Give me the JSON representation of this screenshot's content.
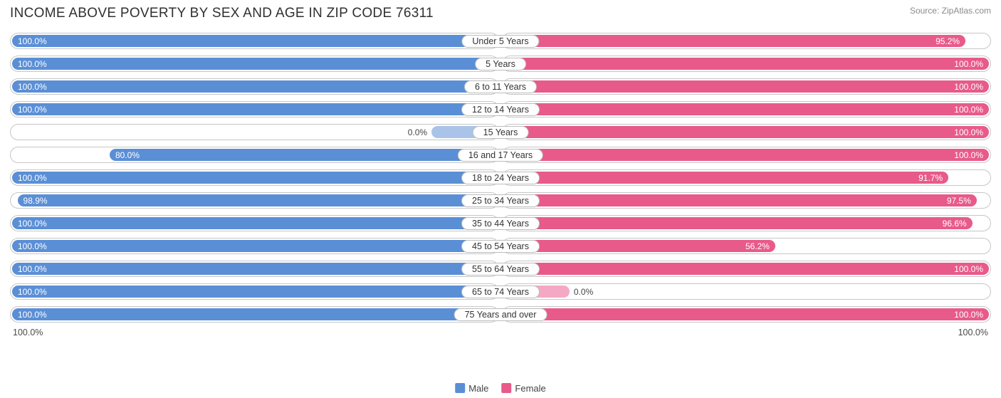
{
  "title": "INCOME ABOVE POVERTY BY SEX AND AGE IN ZIP CODE 76311",
  "source": "Source: ZipAtlas.com",
  "type": "diverging-bar",
  "colors": {
    "male": "#5a8fd6",
    "male_light": "#a9c4e8",
    "female": "#e85a8a",
    "female_light": "#f5a8c3",
    "track_border": "#c6c6c6",
    "background": "#ffffff",
    "text": "#303030"
  },
  "axis": {
    "left": "100.0%",
    "right": "100.0%"
  },
  "legend": [
    {
      "label": "Male",
      "color_key": "male"
    },
    {
      "label": "Female",
      "color_key": "female"
    }
  ],
  "min_bar_pct": 14,
  "rows": [
    {
      "category": "Under 5 Years",
      "male": 100.0,
      "male_label": "100.0%",
      "female": 95.2,
      "female_label": "95.2%"
    },
    {
      "category": "5 Years",
      "male": 100.0,
      "male_label": "100.0%",
      "female": 100.0,
      "female_label": "100.0%"
    },
    {
      "category": "6 to 11 Years",
      "male": 100.0,
      "male_label": "100.0%",
      "female": 100.0,
      "female_label": "100.0%"
    },
    {
      "category": "12 to 14 Years",
      "male": 100.0,
      "male_label": "100.0%",
      "female": 100.0,
      "female_label": "100.0%"
    },
    {
      "category": "15 Years",
      "male": 0.0,
      "male_label": "0.0%",
      "female": 100.0,
      "female_label": "100.0%"
    },
    {
      "category": "16 and 17 Years",
      "male": 80.0,
      "male_label": "80.0%",
      "female": 100.0,
      "female_label": "100.0%"
    },
    {
      "category": "18 to 24 Years",
      "male": 100.0,
      "male_label": "100.0%",
      "female": 91.7,
      "female_label": "91.7%"
    },
    {
      "category": "25 to 34 Years",
      "male": 98.9,
      "male_label": "98.9%",
      "female": 97.5,
      "female_label": "97.5%"
    },
    {
      "category": "35 to 44 Years",
      "male": 100.0,
      "male_label": "100.0%",
      "female": 96.6,
      "female_label": "96.6%"
    },
    {
      "category": "45 to 54 Years",
      "male": 100.0,
      "male_label": "100.0%",
      "female": 56.2,
      "female_label": "56.2%"
    },
    {
      "category": "55 to 64 Years",
      "male": 100.0,
      "male_label": "100.0%",
      "female": 100.0,
      "female_label": "100.0%"
    },
    {
      "category": "65 to 74 Years",
      "male": 100.0,
      "male_label": "100.0%",
      "female": 0.0,
      "female_label": "0.0%"
    },
    {
      "category": "75 Years and over",
      "male": 100.0,
      "male_label": "100.0%",
      "female": 100.0,
      "female_label": "100.0%"
    }
  ]
}
